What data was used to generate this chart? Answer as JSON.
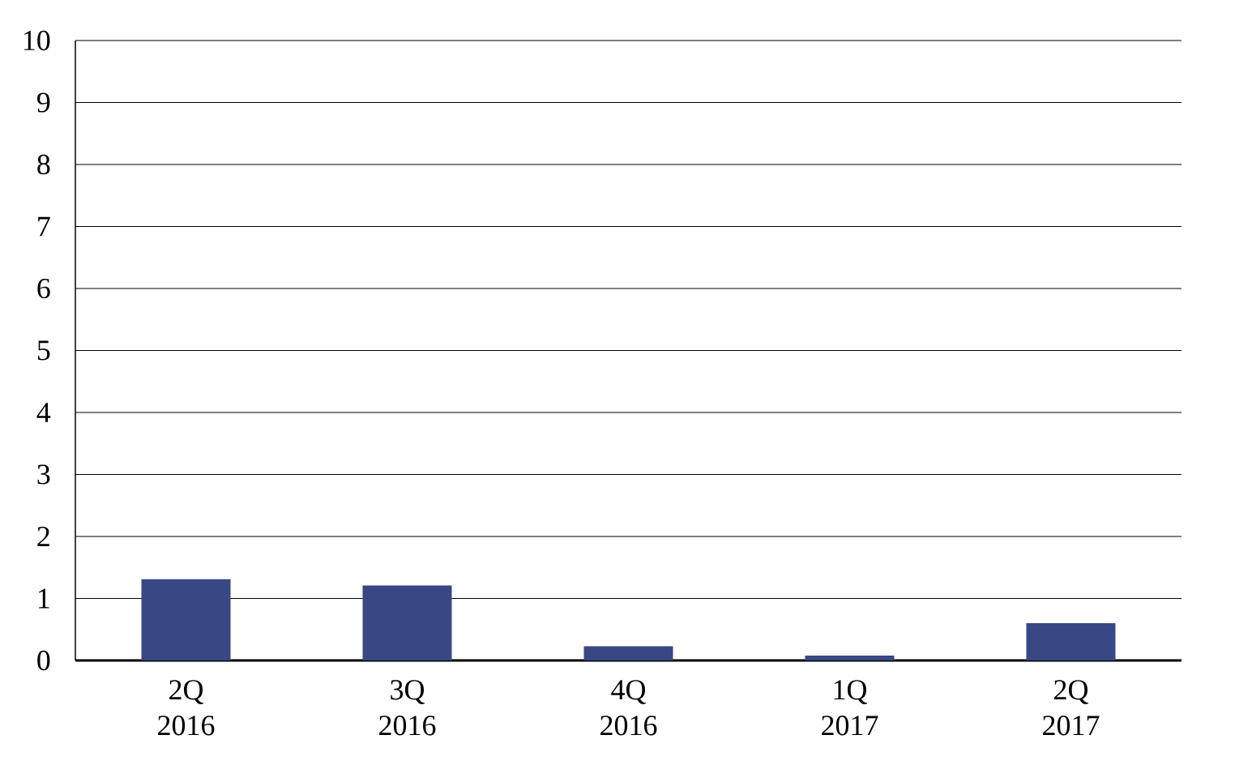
{
  "chart_data": {
    "type": "bar",
    "categories": [
      "2Q 2016",
      "3Q 2016",
      "4Q 2016",
      "1Q 2017",
      "2Q 2017"
    ],
    "values": [
      1.31,
      1.21,
      0.23,
      0.08,
      0.6
    ],
    "color": "#394784",
    "ylim": [
      0,
      10
    ],
    "yticks": [
      0,
      1,
      2,
      3,
      4,
      5,
      6,
      7,
      8,
      9,
      10
    ],
    "grid": "y"
  }
}
